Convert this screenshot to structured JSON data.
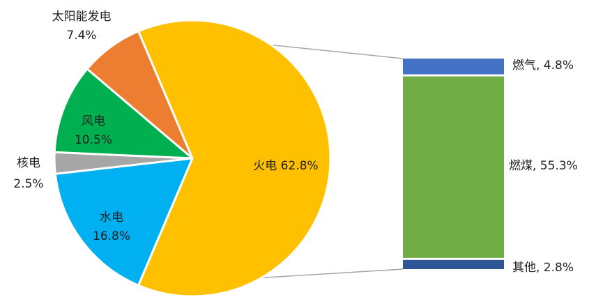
{
  "chart_data": {
    "type": "pie",
    "title": "",
    "slices": [
      {
        "name": "火电",
        "value": 62.8,
        "label": "火电 62.8%",
        "color": "#FFC000"
      },
      {
        "name": "水电",
        "value": 16.8,
        "label_name": "水电",
        "label_value": "16.8%",
        "color": "#00B0F0"
      },
      {
        "name": "核电",
        "value": 2.5,
        "label_name": "核电",
        "label_value": "2.5%",
        "color": "#A6A6A6"
      },
      {
        "name": "风电",
        "value": 10.5,
        "label_name": "风电",
        "label_value": "10.5%",
        "color": "#00B050"
      },
      {
        "name": "太阳能发电",
        "value": 7.4,
        "label_name": "太阳能发电",
        "label_value": "7.4%",
        "color": "#ED7D31"
      }
    ],
    "breakdown": {
      "parent": "火电",
      "type": "stacked-bar",
      "segments": [
        {
          "name": "燃气",
          "value": 4.8,
          "label": "燃气, 4.8%",
          "color": "#4472C4"
        },
        {
          "name": "燃煤",
          "value": 55.3,
          "label": "燃煤, 55.3%",
          "color": "#70AD47"
        },
        {
          "name": "其他",
          "value": 2.8,
          "label": "其他, 2.8%",
          "color": "#2F5597"
        }
      ]
    }
  }
}
